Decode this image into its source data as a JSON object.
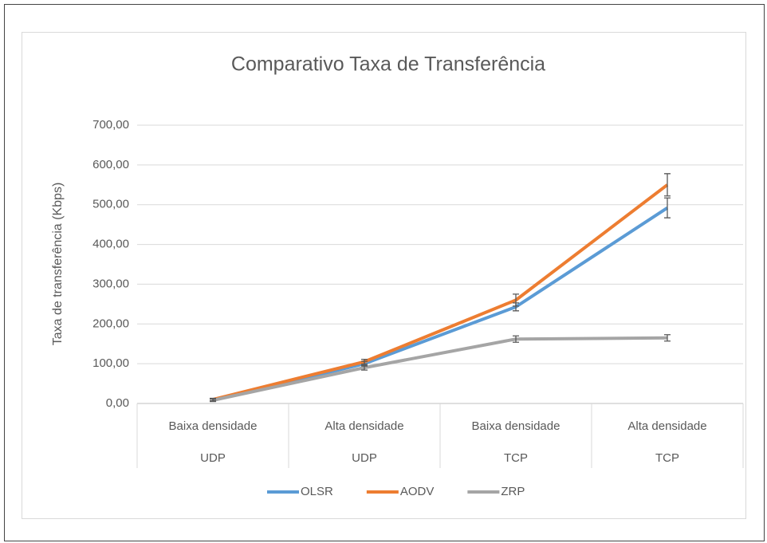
{
  "chart_data": {
    "type": "line",
    "title": "Comparativo Taxa de Transferência",
    "y_label": "Taxa de transferência (Kbps)",
    "categories": [
      "Baixa densidade",
      "Alta densidade",
      "Baixa densidade",
      "Alta densidade"
    ],
    "groups": [
      "UDP",
      "UDP",
      "TCP",
      "TCP"
    ],
    "series": [
      {
        "name": "OLSR",
        "color": "#5b9bd5",
        "values": [
          8,
          100,
          243,
          492
        ],
        "errors": [
          3,
          6,
          10,
          25
        ]
      },
      {
        "name": "AODV",
        "color": "#ed7d31",
        "values": [
          10,
          105,
          260,
          550
        ],
        "errors": [
          3,
          6,
          15,
          28
        ]
      },
      {
        "name": "ZRP",
        "color": "#a5a5a5",
        "values": [
          8,
          90,
          162,
          165
        ],
        "errors": [
          3,
          6,
          8,
          8
        ]
      }
    ],
    "ylim": [
      0,
      700
    ],
    "yticks": [
      {
        "value": 0,
        "label": "0,00"
      },
      {
        "value": 100,
        "label": "100,00"
      },
      {
        "value": 200,
        "label": "200,00"
      },
      {
        "value": 300,
        "label": "300,00"
      },
      {
        "value": 400,
        "label": "400,00"
      },
      {
        "value": 500,
        "label": "500,00"
      },
      {
        "value": 600,
        "label": "600,00"
      },
      {
        "value": 700,
        "label": "700,00"
      }
    ],
    "grid": true,
    "legend": "bottom"
  }
}
